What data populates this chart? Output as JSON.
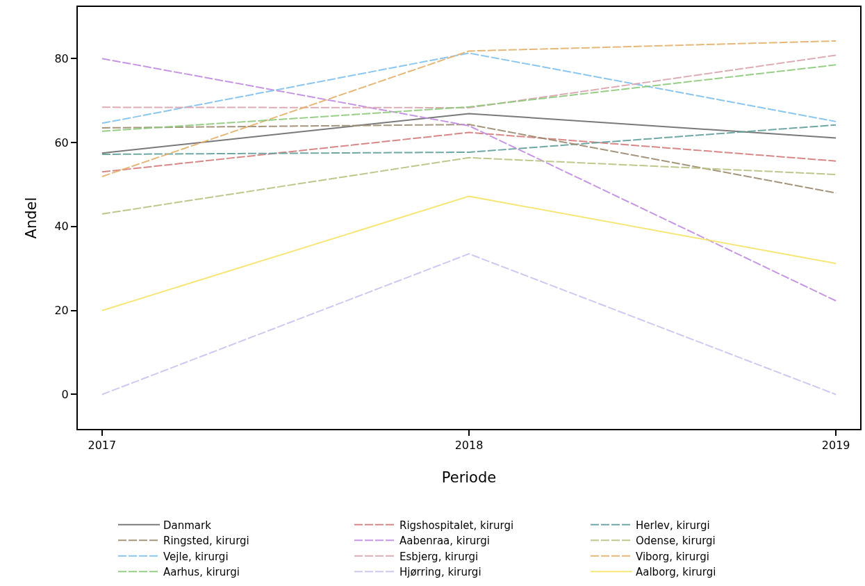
{
  "chart_data": {
    "type": "line",
    "xlabel": "Periode",
    "ylabel": "Andel",
    "x": [
      2017,
      2018,
      2019
    ],
    "xlim": [
      2016.934,
      2019.066
    ],
    "xticks": [
      2017,
      2018,
      2019
    ],
    "ylim": [
      -8.2,
      92.3
    ],
    "yticks": [
      0,
      20,
      40,
      60,
      80
    ],
    "grid": false,
    "legend": "bottom",
    "marker": "none",
    "series": [
      {
        "name": "Danmark",
        "color": "#6b6b6b",
        "line_style": "solid",
        "values": [
          57.5,
          66.9,
          61.1
        ]
      },
      {
        "name": "Ringsted, kirurgi",
        "color": "#9b8a6e",
        "line_style": "dashed",
        "values": [
          63.5,
          64.3,
          48.0
        ]
      },
      {
        "name": "Vejle, kirurgi",
        "color": "#7ec0ee",
        "line_style": "dashed",
        "values": [
          64.6,
          81.3,
          65.0
        ]
      },
      {
        "name": "Aarhus, kirurgi",
        "color": "#8cc97a",
        "line_style": "dashed",
        "values": [
          62.7,
          68.5,
          78.5
        ]
      },
      {
        "name": "Rigshospitalet, kirurgi",
        "color": "#d47a7a",
        "line_style": "dashed",
        "values": [
          53.0,
          62.4,
          55.6
        ]
      },
      {
        "name": "Aabenraa, kirurgi",
        "color": "#c08ae0",
        "line_style": "dashed",
        "values": [
          80.0,
          64.0,
          22.3
        ]
      },
      {
        "name": "Esbjerg, kirurgi",
        "color": "#d9a3ad",
        "line_style": "dashed",
        "values": [
          68.4,
          68.3,
          80.8
        ]
      },
      {
        "name": "Hjørring, kirurgi",
        "color": "#c8c4f0",
        "line_style": "dashed",
        "values": [
          0,
          33.5,
          0
        ]
      },
      {
        "name": "Herlev, kirurgi",
        "color": "#5f9e9a",
        "line_style": "dashed",
        "values": [
          57.2,
          57.7,
          64.2
        ]
      },
      {
        "name": "Odense, kirurgi",
        "color": "#b8c27f",
        "line_style": "dashed",
        "values": [
          43.0,
          56.4,
          52.4
        ]
      },
      {
        "name": "Viborg, kirurgi",
        "color": "#e3b06a",
        "line_style": "dashed",
        "values": [
          51.9,
          81.8,
          84.2
        ]
      },
      {
        "name": "Aalborg, kirurgi",
        "color": "#f5e46a",
        "line_style": "solid",
        "values": [
          20.0,
          47.2,
          31.2
        ]
      }
    ]
  }
}
